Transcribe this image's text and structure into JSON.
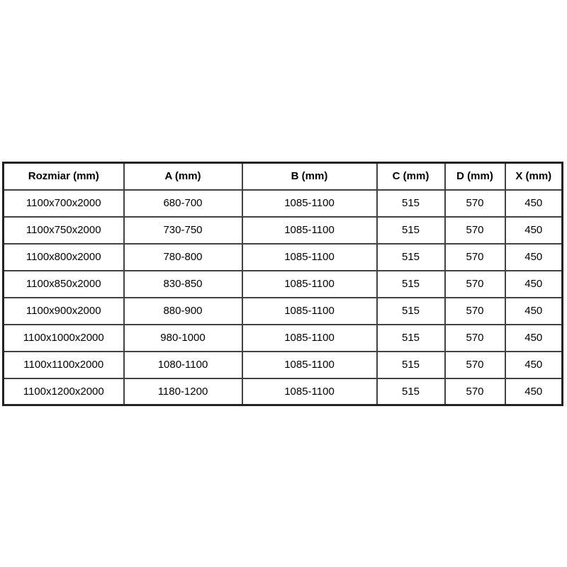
{
  "page": {
    "background_color": "#ffffff",
    "border_color": "#424242",
    "text_color": "#000000"
  },
  "table": {
    "name": "shower-enclosure-dimensions",
    "columns": [
      "Rozmiar (mm)",
      "A (mm)",
      "B (mm)",
      "C (mm)",
      "D (mm)",
      "X (mm)"
    ],
    "rows": [
      [
        "1100x700x2000",
        "680-700",
        "1085-1100",
        "515",
        "570",
        "450"
      ],
      [
        "1100x750x2000",
        "730-750",
        "1085-1100",
        "515",
        "570",
        "450"
      ],
      [
        "1100x800x2000",
        "780-800",
        "1085-1100",
        "515",
        "570",
        "450"
      ],
      [
        "1100x850x2000",
        "830-850",
        "1085-1100",
        "515",
        "570",
        "450"
      ],
      [
        "1100x900x2000",
        "880-900",
        "1085-1100",
        "515",
        "570",
        "450"
      ],
      [
        "1100x1000x2000",
        "980-1000",
        "1085-1100",
        "515",
        "570",
        "450"
      ],
      [
        "1100x1100x2000",
        "1080-1100",
        "1085-1100",
        "515",
        "570",
        "450"
      ],
      [
        "1100x1200x2000",
        "1180-1200",
        "1085-1100",
        "515",
        "570",
        "450"
      ]
    ]
  }
}
